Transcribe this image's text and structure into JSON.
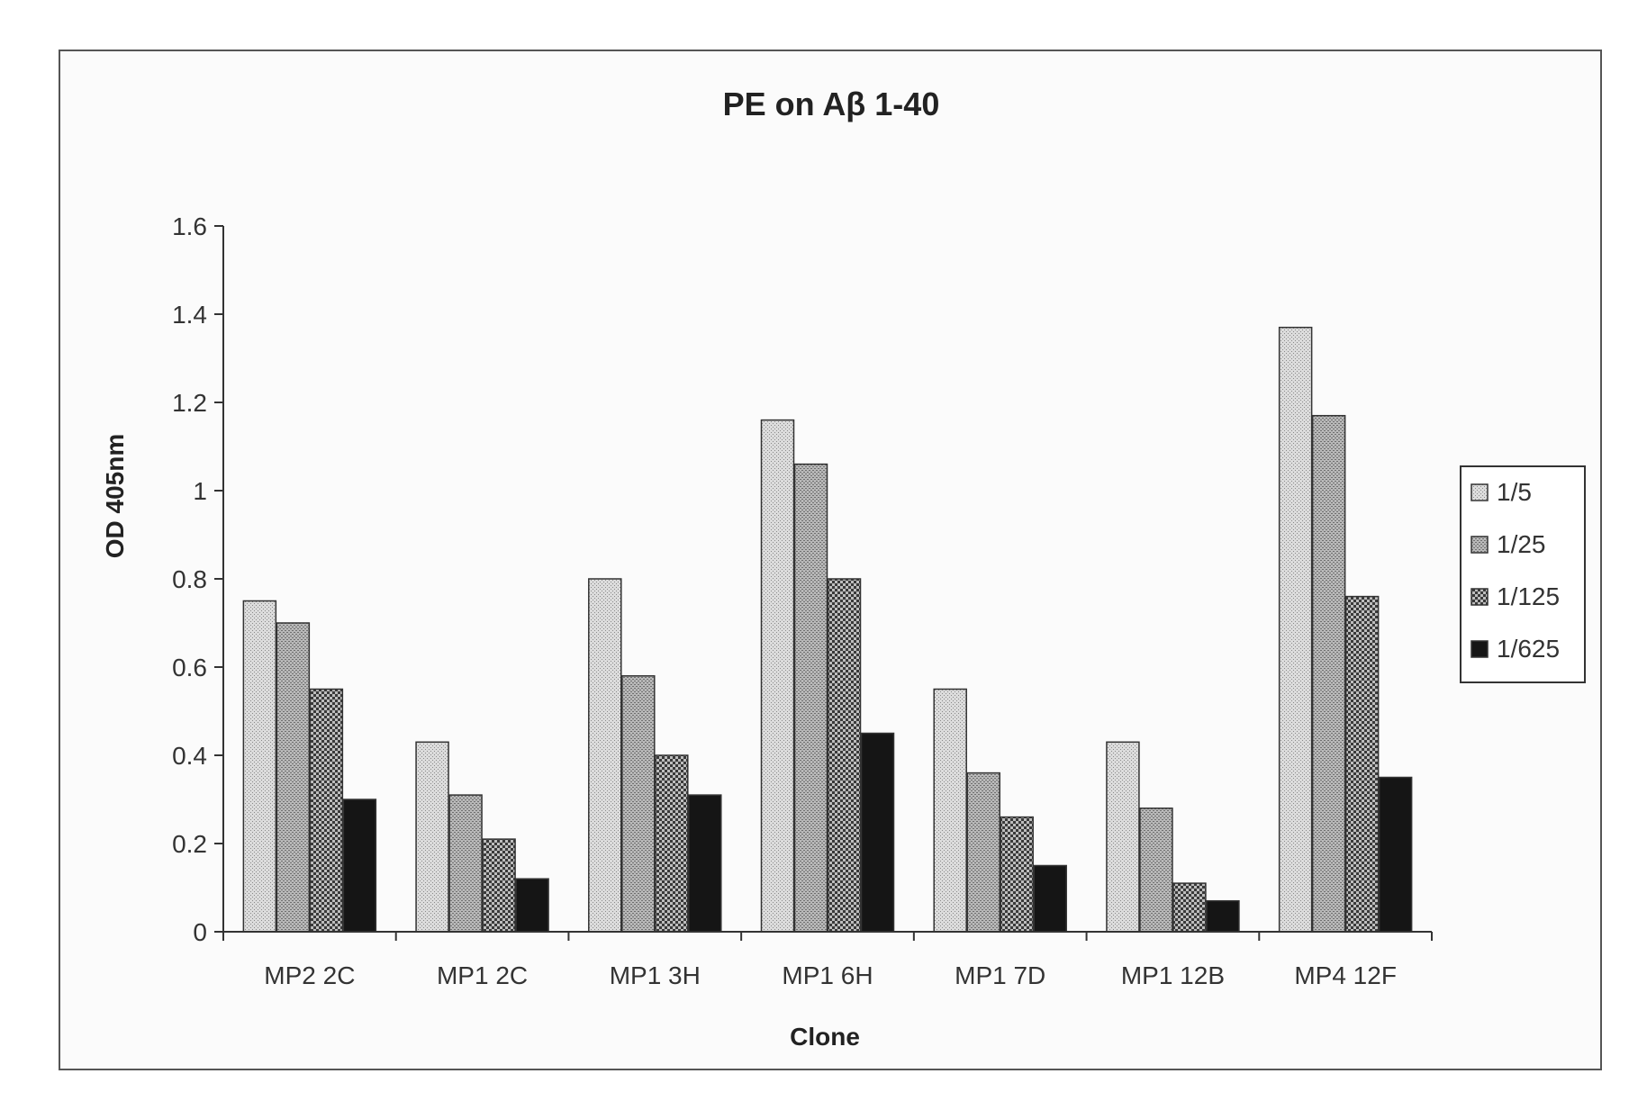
{
  "chart_data": {
    "type": "bar",
    "title": "PE on Aβ 1-40",
    "xlabel": "Clone",
    "ylabel": "OD 405nm",
    "ylim": [
      0,
      1.6
    ],
    "yticks": [
      "0",
      "0.2",
      "0.4",
      "0.6",
      "0.8",
      "1",
      "1.2",
      "1.4",
      "1.6"
    ],
    "grid": false,
    "legend_position": "right",
    "categories": [
      "MP2 2C",
      "MP1 2C",
      "MP1 3H",
      "MP1 6H",
      "MP1 7D",
      "MP1 12B",
      "MP4 12F"
    ],
    "series": [
      {
        "name": "1/5",
        "values": [
          0.75,
          0.43,
          0.8,
          1.16,
          0.55,
          0.43,
          1.37
        ],
        "pattern": "light-dots",
        "color": "#d2d2d2"
      },
      {
        "name": "1/25",
        "values": [
          0.7,
          0.31,
          0.58,
          1.06,
          0.36,
          0.28,
          1.17
        ],
        "pattern": "medium-dots",
        "color": "#a8a8a8"
      },
      {
        "name": "1/125",
        "values": [
          0.55,
          0.21,
          0.4,
          0.8,
          0.26,
          0.11,
          0.76
        ],
        "pattern": "checker",
        "color": "#4a4a4a"
      },
      {
        "name": "1/625",
        "values": [
          0.3,
          0.12,
          0.31,
          0.45,
          0.15,
          0.07,
          0.35
        ],
        "pattern": "solid",
        "color": "#1a1a1a"
      }
    ]
  }
}
